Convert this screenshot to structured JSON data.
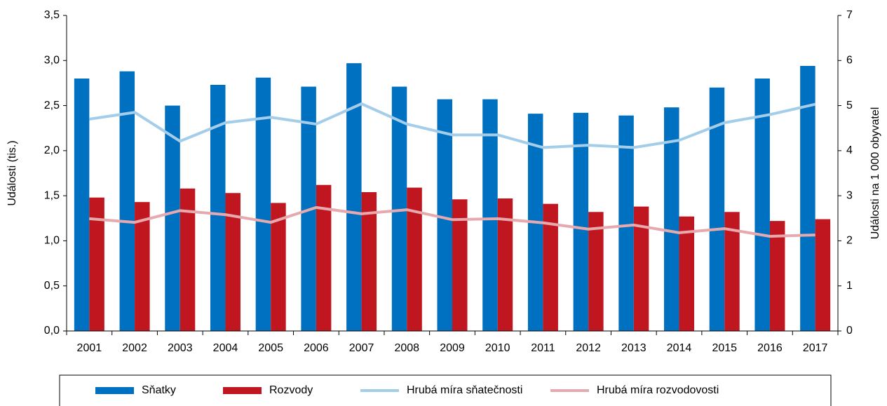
{
  "chart_data": {
    "type": "bar-line",
    "categories": [
      "2001",
      "2002",
      "2003",
      "2004",
      "2005",
      "2006",
      "2007",
      "2008",
      "2009",
      "2010",
      "2011",
      "2012",
      "2013",
      "2014",
      "2015",
      "2016",
      "2017"
    ],
    "series": [
      {
        "name": "Sňatky",
        "color": "#0070c0",
        "type": "bar",
        "axis": "y",
        "values": [
          2.8,
          2.88,
          2.5,
          2.73,
          2.81,
          2.71,
          2.97,
          2.71,
          2.57,
          2.57,
          2.41,
          2.42,
          2.39,
          2.48,
          2.7,
          2.8,
          2.94
        ]
      },
      {
        "name": "Rozvody",
        "color": "#c0161f",
        "type": "bar",
        "axis": "y",
        "values": [
          1.48,
          1.43,
          1.58,
          1.53,
          1.42,
          1.62,
          1.54,
          1.59,
          1.46,
          1.47,
          1.41,
          1.32,
          1.38,
          1.27,
          1.32,
          1.22,
          1.24
        ]
      },
      {
        "name": "Hrubá míra sňatečnosti",
        "color": "#a4cdea",
        "type": "line",
        "axis": "y2",
        "values": [
          4.7,
          4.85,
          4.21,
          4.62,
          4.74,
          4.59,
          5.04,
          4.59,
          4.35,
          4.35,
          4.07,
          4.12,
          4.07,
          4.23,
          4.62,
          4.8,
          5.03
        ]
      },
      {
        "name": "Hrubá míra rozvodovosti",
        "color": "#e6a9ae",
        "type": "line",
        "axis": "y2",
        "values": [
          2.49,
          2.41,
          2.67,
          2.58,
          2.41,
          2.74,
          2.6,
          2.69,
          2.47,
          2.49,
          2.4,
          2.26,
          2.35,
          2.18,
          2.27,
          2.1,
          2.13
        ]
      }
    ],
    "ylabel": "Události (tis.)",
    "y2label": "Události na 1 000 obyvatel",
    "ylim": [
      0,
      3.5
    ],
    "yticks": [
      {
        "value": 0,
        "label": "0,0"
      },
      {
        "value": 0.5,
        "label": "0,5"
      },
      {
        "value": 1,
        "label": "1,0"
      },
      {
        "value": 1.5,
        "label": "1,5"
      },
      {
        "value": 2,
        "label": "2,0"
      },
      {
        "value": 2.5,
        "label": "2,5"
      },
      {
        "value": 3,
        "label": "3,0"
      },
      {
        "value": 3.5,
        "label": "3,5"
      }
    ],
    "y2lim": [
      0,
      7
    ],
    "y2ticks": [
      0,
      1,
      2,
      3,
      4,
      5,
      6,
      7
    ],
    "legend": "bottom"
  }
}
